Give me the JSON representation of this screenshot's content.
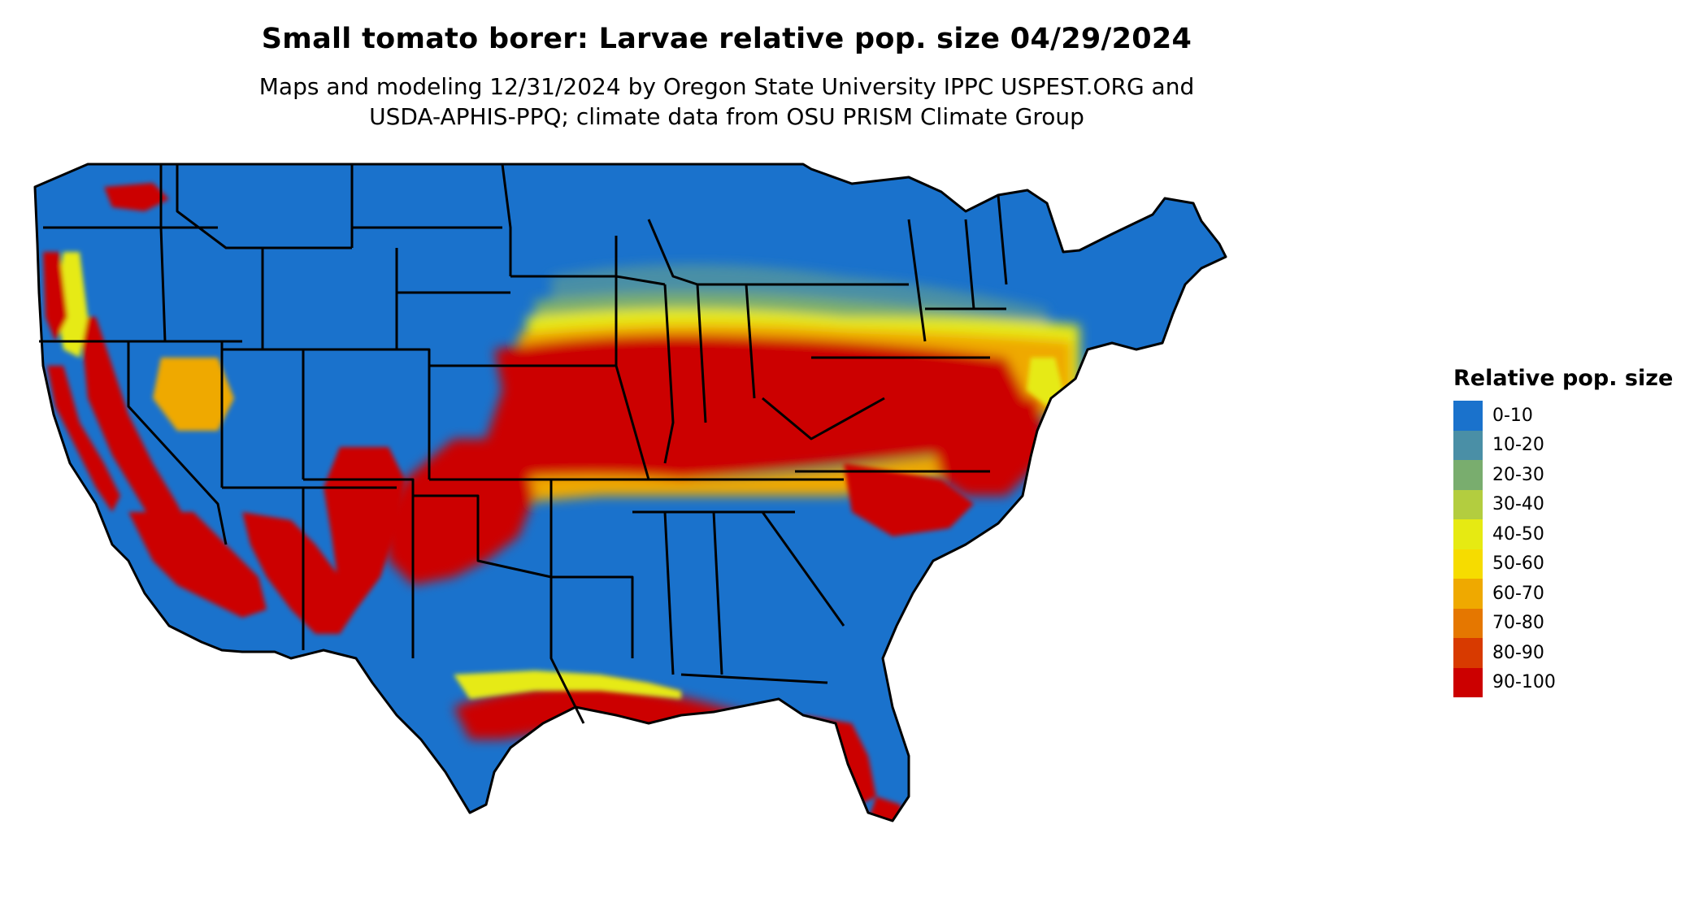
{
  "title": "Small tomato borer: Larvae relative pop. size 04/29/2024",
  "subtitle_line1": "Maps and modeling 12/31/2024 by Oregon State University IPPC USPEST.ORG and",
  "subtitle_line2": "USDA-APHIS-PPQ; climate data from OSU PRISM Climate Group",
  "legend": {
    "title": "Relative pop. size",
    "items": [
      {
        "label": "0-10",
        "color": "#1a72cc"
      },
      {
        "label": "10-20",
        "color": "#4a8fa6"
      },
      {
        "label": "20-30",
        "color": "#79ad6e"
      },
      {
        "label": "30-40",
        "color": "#b3cd3f"
      },
      {
        "label": "40-50",
        "color": "#e6ea12"
      },
      {
        "label": "50-60",
        "color": "#f6dc00"
      },
      {
        "label": "60-70",
        "color": "#efa900"
      },
      {
        "label": "70-80",
        "color": "#e57700"
      },
      {
        "label": "80-90",
        "color": "#d83a00"
      },
      {
        "label": "90-100",
        "color": "#cc0000"
      }
    ]
  },
  "map": {
    "region": "Contiguous United States",
    "state_borders": "black",
    "background": "#ffffff"
  }
}
